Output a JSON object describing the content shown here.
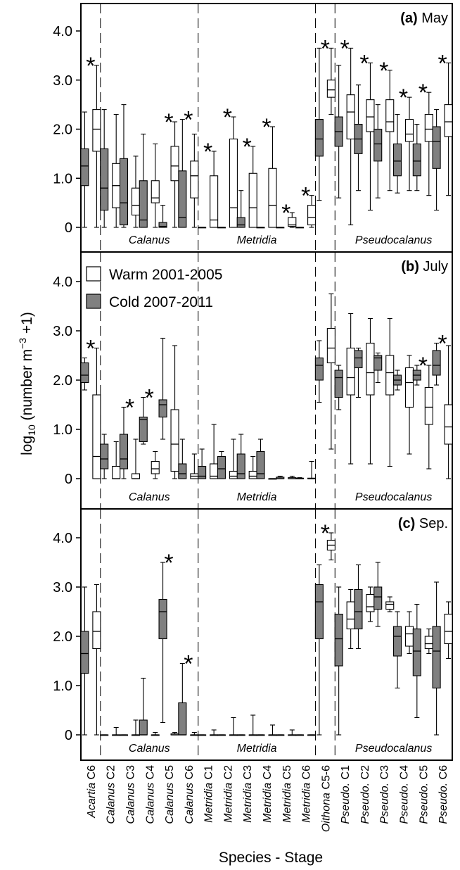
{
  "chart_data": {
    "type": "boxplot",
    "xlabel": "Species - Stage",
    "ylabel_parts": {
      "base": "log",
      "sub": "10",
      "mid": " (number m",
      "sup": "−3",
      "end": " +1)"
    },
    "ylim": [
      0,
      4.5
    ],
    "yticks": [
      "0",
      "1.0",
      "2.0",
      "3.0",
      "4.0"
    ],
    "categories": [
      {
        "genus": "Acartia",
        "stage": " C6"
      },
      {
        "genus": "Calanus",
        "stage": " C2"
      },
      {
        "genus": "Calanus",
        "stage": " C3"
      },
      {
        "genus": "Calanus",
        "stage": " C4"
      },
      {
        "genus": "Calanus",
        "stage": " C5"
      },
      {
        "genus": "Calanus",
        "stage": " C6"
      },
      {
        "genus": "Metridia",
        "stage": " C1"
      },
      {
        "genus": "Metridia",
        "stage": " C2"
      },
      {
        "genus": "Metridia",
        "stage": " C3"
      },
      {
        "genus": "Metridia",
        "stage": " C4"
      },
      {
        "genus": "Metridia",
        "stage": " C5"
      },
      {
        "genus": "Metridia",
        "stage": " C6"
      },
      {
        "genus": "Oithona",
        "stage": " C5-6"
      },
      {
        "genus": "Pseudo.",
        "stage": " C1"
      },
      {
        "genus": "Pseudo.",
        "stage": " C2"
      },
      {
        "genus": "Pseudo.",
        "stage": " C3"
      },
      {
        "genus": "Pseudo.",
        "stage": " C4"
      },
      {
        "genus": "Pseudo.",
        "stage": " C5"
      },
      {
        "genus": "Pseudo.",
        "stage": " C6"
      }
    ],
    "group_labels": [
      {
        "text": "Calanus",
        "from": 1,
        "to": 5
      },
      {
        "text": "Metridia",
        "from": 6,
        "to": 11
      },
      {
        "text": "Pseudocalanus",
        "from": 13,
        "to": 18
      }
    ],
    "legend": [
      {
        "label": "Warm 2001-2005",
        "color": "#ffffff"
      },
      {
        "label": "Cold 2007-2011",
        "color": "#808080"
      }
    ],
    "series_colors": {
      "cold": "#808080",
      "warm": "#ffffff"
    },
    "panels": [
      {
        "label_bold": "(a)",
        "label_rest": " May",
        "stars": [
          0,
          4,
          5,
          6,
          7,
          8,
          9,
          10,
          11,
          12,
          13,
          14,
          15,
          16,
          17,
          18
        ],
        "cold": [
          [
            0,
            0.85,
            1.25,
            1.6,
            2.35
          ],
          [
            0,
            0.35,
            0.8,
            1.6,
            2.4
          ],
          [
            0,
            0.05,
            0.5,
            1.4,
            2.5
          ],
          [
            0,
            0,
            0.15,
            0.95,
            1.9
          ],
          [
            0,
            0,
            0.02,
            0.1,
            0.45
          ],
          [
            0,
            0,
            0.2,
            1.15,
            2.2
          ],
          [
            0,
            0,
            0,
            0,
            0
          ],
          [
            0,
            0,
            0,
            0,
            0
          ],
          [
            0,
            0,
            0.05,
            0.2,
            0.75
          ],
          [
            0,
            0,
            0,
            0,
            0
          ],
          [
            0,
            0,
            0,
            0,
            0
          ],
          [
            0,
            0,
            0,
            0,
            0
          ],
          [
            0.55,
            1.45,
            1.8,
            2.2,
            3.65
          ],
          [
            0.6,
            1.65,
            1.95,
            2.25,
            3.3
          ],
          [
            0.75,
            1.5,
            1.8,
            2.1,
            2.9
          ],
          [
            0.6,
            1.35,
            1.7,
            2.0,
            2.5
          ],
          [
            0.7,
            1.05,
            1.35,
            1.7,
            2.3
          ],
          [
            0.75,
            1.05,
            1.35,
            1.7,
            2.1
          ],
          [
            0.35,
            1.2,
            1.75,
            2.05,
            2.4
          ]
        ],
        "warm": [
          [
            0,
            1.55,
            2.0,
            2.4,
            3.3
          ],
          [
            0,
            0.4,
            0.85,
            1.3,
            2.3
          ],
          [
            0,
            0.25,
            0.45,
            0.8,
            1.45
          ],
          [
            0,
            0.5,
            0.6,
            0.95,
            1.7
          ],
          [
            0,
            0.95,
            1.25,
            1.65,
            2.15
          ],
          [
            0,
            0.6,
            1.05,
            1.35,
            1.9
          ],
          [
            0,
            0,
            0.15,
            1.05,
            1.55
          ],
          [
            0,
            0,
            0.4,
            1.8,
            2.25
          ],
          [
            0,
            0,
            0.4,
            1.1,
            1.65
          ],
          [
            0,
            0,
            0.45,
            1.2,
            2.05
          ],
          [
            0,
            0.02,
            0.05,
            0.2,
            0.3
          ],
          [
            0,
            0.05,
            0.2,
            0.45,
            0.65
          ],
          [
            2.3,
            2.65,
            2.8,
            3.0,
            3.65
          ],
          [
            0.05,
            1.8,
            2.35,
            2.7,
            3.65
          ],
          [
            0.35,
            1.95,
            2.25,
            2.6,
            3.35
          ],
          [
            0.75,
            1.95,
            2.15,
            2.6,
            3.2
          ],
          [
            0.75,
            1.75,
            1.9,
            2.2,
            2.65
          ],
          [
            0.65,
            1.75,
            2.0,
            2.3,
            2.75
          ],
          [
            0.65,
            1.85,
            2.15,
            2.5,
            3.35
          ]
        ]
      },
      {
        "label_bold": "(b)",
        "label_rest": " July",
        "stars": [
          0,
          2,
          3,
          17,
          18
        ],
        "cold": [
          [
            1.8,
            1.95,
            2.1,
            2.35,
            2.45
          ],
          [
            0,
            0.2,
            0.4,
            0.7,
            0.9
          ],
          [
            0,
            0.2,
            0.4,
            0.9,
            1.45
          ],
          [
            0.7,
            0.75,
            1.2,
            1.25,
            1.65
          ],
          [
            0.8,
            1.25,
            1.5,
            1.6,
            2.85
          ],
          [
            0,
            0,
            0.1,
            0.3,
            0.8
          ],
          [
            0,
            0,
            0.05,
            0.25,
            0.6
          ],
          [
            0,
            0,
            0.2,
            0.45,
            0.55
          ],
          [
            0,
            0,
            0.1,
            0.5,
            0.9
          ],
          [
            0,
            0,
            0.1,
            0.55,
            0.8
          ],
          [
            0,
            0,
            0,
            0.03,
            0.05
          ],
          [
            0,
            0,
            0,
            0.01,
            0.02
          ],
          [
            1.55,
            2.0,
            2.3,
            2.45,
            2.8
          ],
          [
            1.4,
            1.65,
            2.05,
            2.2,
            2.3
          ],
          [
            1.65,
            2.25,
            2.45,
            2.6,
            2.65
          ],
          [
            1.95,
            2.2,
            2.45,
            2.5,
            2.55
          ],
          [
            1.8,
            1.9,
            2.0,
            2.1,
            2.2
          ],
          [
            1.9,
            2.0,
            2.1,
            2.2,
            2.3
          ],
          [
            1.9,
            2.1,
            2.3,
            2.6,
            2.75
          ]
        ],
        "warm": [
          [
            0,
            0,
            0.45,
            1.7,
            2.65
          ],
          [
            0,
            0,
            0,
            0.25,
            0.75
          ],
          [
            0,
            0,
            0,
            0.1,
            0.8
          ],
          [
            0,
            0.1,
            0.2,
            0.35,
            0.55
          ],
          [
            0,
            0.15,
            0.7,
            1.4,
            2.7
          ],
          [
            0,
            0,
            0.05,
            0.1,
            0.5
          ],
          [
            0,
            0,
            0.05,
            0.3,
            1.1
          ],
          [
            0,
            0,
            0.05,
            0.15,
            0.8
          ],
          [
            0,
            0,
            0.05,
            0.15,
            0.45
          ],
          [
            0,
            0,
            0,
            0,
            0
          ],
          [
            0,
            0,
            0,
            0.02,
            0.05
          ],
          [
            0,
            0,
            0,
            0.01,
            0.35
          ],
          [
            0.6,
            2.35,
            2.65,
            3.05,
            3.75
          ],
          [
            0.3,
            1.7,
            2.05,
            2.65,
            3.35
          ],
          [
            0.3,
            1.7,
            2.15,
            2.75,
            3.25
          ],
          [
            0.25,
            1.7,
            2.15,
            2.5,
            3.25
          ],
          [
            0.5,
            1.45,
            1.95,
            2.25,
            2.5
          ],
          [
            0.2,
            1.1,
            1.45,
            1.85,
            2.3
          ],
          [
            0,
            0.7,
            1.05,
            1.5,
            2.7
          ]
        ]
      },
      {
        "label_bold": "(c)",
        "label_rest": " Sep.",
        "stars": [
          4,
          5,
          12
        ],
        "cold": [
          [
            0,
            1.25,
            1.65,
            2.1,
            3.0
          ],
          [
            0,
            0,
            0,
            0,
            0
          ],
          [
            0,
            0,
            0,
            0,
            0
          ],
          [
            0,
            0,
            0,
            0.3,
            1.15
          ],
          [
            0.25,
            1.95,
            2.5,
            2.75,
            3.5
          ],
          [
            0,
            0,
            0,
            0.65,
            1.45
          ],
          [
            0,
            0,
            0,
            0,
            0
          ],
          [
            0,
            0,
            0,
            0,
            0
          ],
          [
            0,
            0,
            0,
            0,
            0
          ],
          [
            0,
            0,
            0,
            0,
            0
          ],
          [
            0,
            0,
            0,
            0,
            0
          ],
          [
            0,
            0,
            0,
            0,
            0
          ],
          [
            0,
            1.95,
            2.7,
            3.05,
            3.45
          ],
          [
            0,
            1.4,
            1.95,
            2.45,
            3.0
          ],
          [
            1.75,
            2.15,
            2.5,
            2.95,
            3.45
          ],
          [
            2.2,
            2.55,
            2.8,
            3.0,
            3.5
          ],
          [
            0.95,
            1.6,
            2.0,
            2.2,
            2.5
          ],
          [
            0.35,
            1.2,
            1.7,
            2.15,
            2.65
          ],
          [
            0,
            0.95,
            1.7,
            2.2,
            3.1
          ]
        ],
        "warm": [
          [
            0,
            1.75,
            2.1,
            2.5,
            3.05
          ],
          [
            0,
            0,
            0,
            0,
            0.15
          ],
          [
            0,
            0,
            0,
            0,
            0.3
          ],
          [
            0,
            0,
            0,
            0,
            0.05
          ],
          [
            0,
            0,
            0,
            0.02,
            0.05
          ],
          [
            0,
            0,
            0,
            0,
            0.05
          ],
          [
            0,
            0,
            0,
            0,
            0.1
          ],
          [
            0,
            0,
            0,
            0,
            0.35
          ],
          [
            0,
            0,
            0,
            0,
            0.4
          ],
          [
            0,
            0,
            0,
            0,
            0.2
          ],
          [
            0,
            0,
            0,
            0,
            0.1
          ],
          [
            0,
            0,
            0,
            0,
            0
          ],
          [
            3.55,
            3.75,
            3.85,
            3.95,
            4.1
          ],
          [
            1.75,
            2.15,
            2.35,
            2.7,
            2.95
          ],
          [
            2.3,
            2.5,
            2.6,
            2.85,
            3.0
          ],
          [
            2.5,
            2.55,
            2.65,
            2.7,
            2.8
          ],
          [
            1.65,
            1.8,
            2.05,
            2.2,
            2.5
          ],
          [
            1.65,
            1.75,
            1.85,
            2.0,
            2.15
          ],
          [
            1.55,
            1.85,
            2.1,
            2.45,
            2.7
          ]
        ]
      }
    ]
  }
}
